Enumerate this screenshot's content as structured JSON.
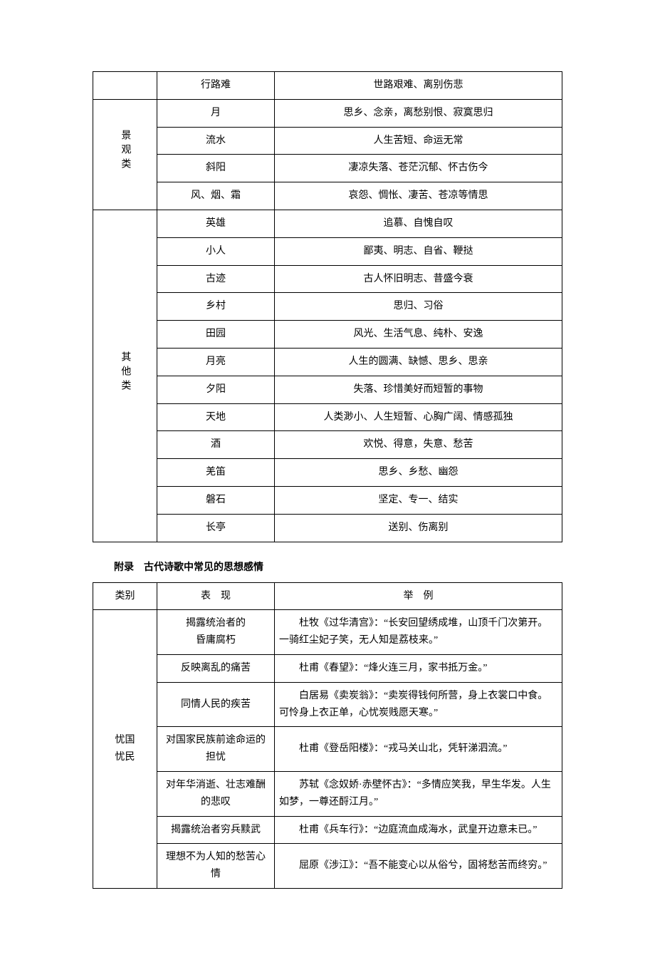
{
  "table1": {
    "groups": [
      {
        "label": "",
        "rowspan": 1,
        "rows": [
          {
            "item": "行路难",
            "meaning": "世路艰难、离别伤悲"
          }
        ]
      },
      {
        "label": "景观类",
        "rowspan": 4,
        "rows": [
          {
            "item": "月",
            "meaning": "思乡、念亲，离愁别恨、寂寞思归"
          },
          {
            "item": "流水",
            "meaning": "人生苦短、命运无常"
          },
          {
            "item": "斜阳",
            "meaning": "凄凉失落、苍茫沉郁、怀古伤今"
          },
          {
            "item": "风、烟、霜",
            "meaning": "哀怨、惆怅、凄苦、苍凉等情思"
          }
        ]
      },
      {
        "label": "其他类",
        "rowspan": 12,
        "rows": [
          {
            "item": "英雄",
            "meaning": "追慕、自愧自叹"
          },
          {
            "item": "小人",
            "meaning": "鄙夷、明志、自省、鞭挞"
          },
          {
            "item": "古迹",
            "meaning": "古人怀旧明志、昔盛今衰"
          },
          {
            "item": "乡村",
            "meaning": "思归、习俗"
          },
          {
            "item": "田园",
            "meaning": "风光、生活气息、纯朴、安逸"
          },
          {
            "item": "月亮",
            "meaning": "人生的圆满、缺憾、思乡、思亲"
          },
          {
            "item": "夕阳",
            "meaning": "失落、珍惜美好而短暂的事物"
          },
          {
            "item": "天地",
            "meaning": "人类渺小、人生短暂、心胸广阔、情感孤独"
          },
          {
            "item": "酒",
            "meaning": "欢悦、得意，失意、愁苦"
          },
          {
            "item": "羌笛",
            "meaning": "思乡、乡愁、幽怨"
          },
          {
            "item": "磐石",
            "meaning": "坚定、专一、结实"
          },
          {
            "item": "长亭",
            "meaning": "送别、伤离别"
          }
        ]
      }
    ]
  },
  "sectionTitle": "附录　古代诗歌中常见的思想感情",
  "table2": {
    "headers": {
      "c1": "类别",
      "c2": "表　现",
      "c3": "举　例"
    },
    "group": {
      "label": "忧国忧民",
      "rowspan": 7,
      "rows": [
        {
          "expr": "揭露统治者的\n昏庸腐朽",
          "example": "　杜牧《过华清宫》：“长安回望绣成堆，山顶千门次第开。一骑红尘妃子笑，无人知是荔枝来。”"
        },
        {
          "expr": "反映离乱的痛苦",
          "example": "　杜甫《春望》：“烽火连三月，家书抵万金。”"
        },
        {
          "expr": "同情人民的疾苦",
          "example": "　白居易《卖炭翁》：“卖炭得钱何所营，身上衣裳口中食。可怜身上衣正单，心忧炭贱愿天寒。”"
        },
        {
          "expr": "对国家民族前途命运的\n担忧",
          "example": "　杜甫《登岳阳楼》：“戎马关山北，凭轩涕泗流。”"
        },
        {
          "expr": "对年华消逝、壮志难酬\n的悲叹",
          "example": "　苏轼《念奴娇·赤壁怀古》：“多情应笑我，早生华发。人生如梦，一尊还酹江月。”"
        },
        {
          "expr": "揭露统治者穷兵黩武",
          "example": "　杜甫《兵车行》：“边庭流血成海水，武皇开边意未已。”"
        },
        {
          "expr": "理想不为人知的愁苦心\n情",
          "example": "　屈原《涉江》：“吾不能变心以从俗兮，固将愁苦而终穷。”"
        }
      ]
    }
  }
}
